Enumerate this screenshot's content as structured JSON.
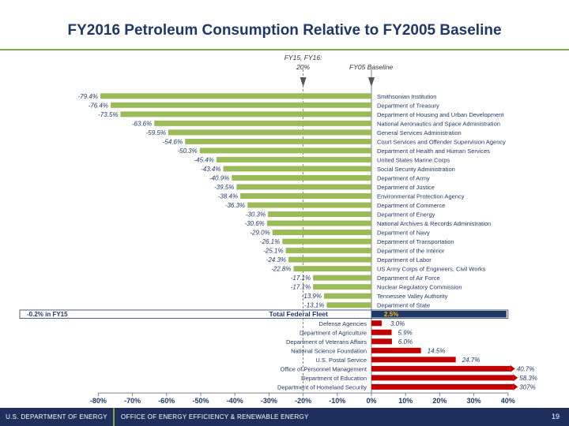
{
  "slide": {
    "title": "FY2016 Petroleum Consumption Relative to FY2005 Baseline"
  },
  "footer": {
    "left": "U.S. DEPARTMENT OF ENERGY",
    "center": "OFFICE OF ENERGY EFFICIENCY & RENEWABLE ENERGY",
    "page": "19"
  },
  "colors": {
    "reduction_bar": "#9bbb59",
    "increase_bar": "#c00000",
    "reduction_label": "#1f3864",
    "increase_label": "#1f3864",
    "total_bar": "#1f3864",
    "total_label": "#ffc000",
    "goal_arrow": "#555555",
    "title": "#1f3864",
    "footer_bg": "#1f2f5c"
  },
  "chart_data": {
    "type": "bar",
    "orientation": "horizontal",
    "categories": [
      "Smithsonian Institution",
      "Department of Treasury",
      "Department of Housing and Urban Development",
      "National Aeronautics and Space Administration",
      "General Services Administration",
      "Court Services and Offender Supervision Agency",
      "Department of Health and Human Services",
      "United States Marine Corps",
      "Social Security Administration",
      "Department of Army",
      "Department of Justice",
      "Environmental Protection Agency",
      "Department of Commerce",
      "Department of Energy",
      "National Archives & Records Administration",
      "Department of Navy",
      "Department of Transportation",
      "Department of the Interior",
      "Department of Labor",
      "US Army Corps of Engineers, Civil Works",
      "Department of Air Force",
      "Nuclear Regulatory Commission",
      "Tennessee Valley Authority",
      "Department of State",
      "Total Federal Fleet",
      "Defense Agencies",
      "Department of Agriculture",
      "Department of Veterans Affairs",
      "National Science Foundation",
      "U.S. Postal Service",
      "Office of Personnel Management",
      "Department of Education",
      "Department of Homeland Security"
    ],
    "values": [
      -79.4,
      -76.4,
      -73.5,
      -63.6,
      -59.5,
      -54.6,
      -50.3,
      -45.4,
      -43.4,
      -40.9,
      -39.5,
      -38.4,
      -36.3,
      -30.3,
      -30.6,
      -29.0,
      -26.1,
      -25.1,
      -24.3,
      -22.8,
      -17.1,
      -17.1,
      -13.9,
      -13.1,
      2.5,
      3.0,
      5.9,
      6.0,
      14.5,
      24.7,
      40.7,
      58.3,
      307
    ],
    "value_labels": [
      "-79.4%",
      "-76.4%",
      "-73.5%",
      "-63.6%",
      "-59.5%",
      "-54.6%",
      "-50.3%",
      "-45.4%",
      "-43.4%",
      "-40.9%",
      "-39.5%",
      "-38.4%",
      "-36.3%",
      "-30.3%",
      "-30.6%",
      "-29.0%",
      "-26.1%",
      "-25.1%",
      "-24.3%",
      "-22.8%",
      "-17.1%",
      "-17.1%",
      "-13.9%",
      "-13.1%",
      "2.5%",
      "3.0%",
      "5.9%",
      "6.0%",
      "14.5%",
      "24.7%",
      "40.7%",
      "58.3%",
      "307%"
    ],
    "total_row_index": 24,
    "total_label": "Total Federal Fleet",
    "total_fy15_note": "-0.2% in FY15",
    "reference_lines": [
      {
        "value": -20,
        "label": "FY15, FY16: 20%"
      },
      {
        "value": 0,
        "label": "FY05 Baseline"
      }
    ],
    "xlim": [
      -80,
      40
    ],
    "x_ticks": [
      "-80%",
      "-70%",
      "-60%",
      "-50%",
      "-40%",
      "-30%",
      "-20%",
      "-10%",
      "0%",
      "10%",
      "20%",
      "30%",
      "40%"
    ],
    "x_tick_values": [
      -80,
      -70,
      -60,
      -50,
      -40,
      -30,
      -20,
      -10,
      0,
      10,
      20,
      30,
      40
    ],
    "grid": false,
    "legend": "none"
  }
}
